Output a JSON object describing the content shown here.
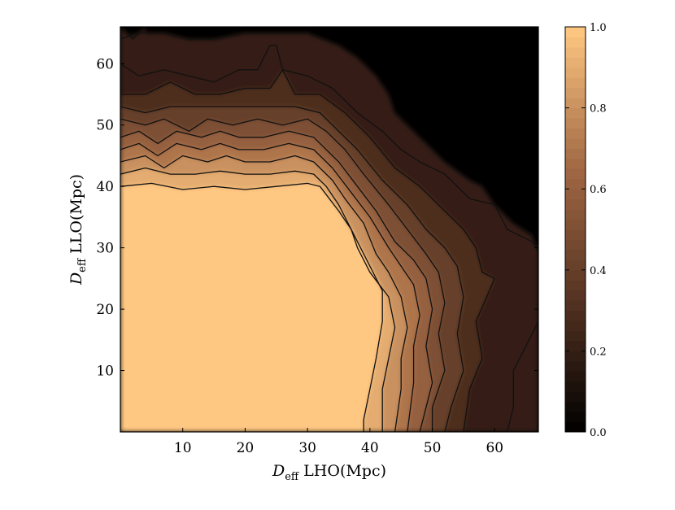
{
  "chart_data": {
    "type": "heatmap",
    "title": "",
    "xlabel": {
      "var": "D",
      "sub": "eff",
      "text": " LHO(Mpc)"
    },
    "ylabel": {
      "var": "D",
      "sub": "eff",
      "text": " LLO(Mpc)"
    },
    "xlim": [
      0,
      67
    ],
    "ylim": [
      0,
      66
    ],
    "xticks": [
      10,
      20,
      30,
      40,
      50,
      60
    ],
    "yticks": [
      10,
      20,
      30,
      40,
      50,
      60
    ],
    "colorbar": {
      "range": [
        0.0,
        1.0
      ],
      "ticks": [
        "1.0",
        "0.8",
        "0.6",
        "0.4",
        "0.2",
        "0.0"
      ],
      "tick_values": [
        1.0,
        0.8,
        0.6,
        0.4,
        0.2,
        0.0
      ],
      "colors": [
        "#000000",
        "#553322",
        "#a36a45",
        "#ffc882"
      ],
      "color_stops": [
        0.0,
        0.33,
        0.66,
        1.0
      ]
    },
    "contour_levels": [
      0.95,
      0.85,
      0.75,
      0.65,
      0.55,
      0.45,
      0.35,
      0.25
    ],
    "contours": [
      {
        "level": 0.95,
        "points": [
          [
            0,
            40
          ],
          [
            5,
            40.5
          ],
          [
            10,
            39.5
          ],
          [
            15,
            40
          ],
          [
            20,
            39.5
          ],
          [
            25,
            40
          ],
          [
            30,
            40.5
          ],
          [
            32,
            40
          ],
          [
            35,
            36
          ],
          [
            37,
            33
          ],
          [
            38,
            31
          ],
          [
            40,
            27
          ],
          [
            42,
            23
          ],
          [
            42,
            18
          ],
          [
            41,
            12
          ],
          [
            40,
            7
          ],
          [
            39,
            2
          ],
          [
            39,
            0
          ]
        ]
      },
      {
        "level": 0.85,
        "points": [
          [
            0,
            42
          ],
          [
            4,
            43
          ],
          [
            8,
            42
          ],
          [
            12,
            42
          ],
          [
            16,
            42.5
          ],
          [
            20,
            42
          ],
          [
            24,
            42
          ],
          [
            28,
            42.5
          ],
          [
            31,
            42
          ],
          [
            33,
            40
          ],
          [
            35,
            37
          ],
          [
            37,
            33
          ],
          [
            38,
            30
          ],
          [
            40,
            26
          ],
          [
            43,
            22
          ],
          [
            44,
            17
          ],
          [
            43,
            12
          ],
          [
            42,
            7
          ],
          [
            42,
            0
          ]
        ]
      },
      {
        "level": 0.75,
        "points": [
          [
            0,
            44
          ],
          [
            4,
            45
          ],
          [
            7,
            43
          ],
          [
            10,
            45
          ],
          [
            14,
            44
          ],
          [
            17,
            45
          ],
          [
            20,
            44
          ],
          [
            24,
            44
          ],
          [
            28,
            45
          ],
          [
            31,
            44
          ],
          [
            34,
            41
          ],
          [
            36,
            38
          ],
          [
            39,
            34
          ],
          [
            41,
            29
          ],
          [
            43,
            26
          ],
          [
            45,
            22
          ],
          [
            46,
            17
          ],
          [
            45,
            12
          ],
          [
            45,
            7
          ],
          [
            44,
            0
          ]
        ]
      },
      {
        "level": 0.65,
        "points": [
          [
            0,
            46
          ],
          [
            3,
            47
          ],
          [
            6,
            45
          ],
          [
            9,
            47
          ],
          [
            13,
            46
          ],
          [
            16,
            47
          ],
          [
            19,
            46
          ],
          [
            23,
            46
          ],
          [
            27,
            47
          ],
          [
            31,
            46
          ],
          [
            34,
            43
          ],
          [
            37,
            39
          ],
          [
            40,
            35
          ],
          [
            43,
            30
          ],
          [
            45,
            27
          ],
          [
            47,
            24
          ],
          [
            48,
            19
          ],
          [
            47,
            14
          ],
          [
            47,
            8
          ],
          [
            46,
            0
          ]
        ]
      },
      {
        "level": 0.55,
        "points": [
          [
            0,
            48
          ],
          [
            3,
            49
          ],
          [
            6,
            47
          ],
          [
            9,
            49
          ],
          [
            13,
            48
          ],
          [
            16,
            49
          ],
          [
            19,
            48
          ],
          [
            23,
            48
          ],
          [
            27,
            49
          ],
          [
            31,
            48
          ],
          [
            35,
            44
          ],
          [
            38,
            40
          ],
          [
            41,
            36
          ],
          [
            44,
            31
          ],
          [
            47,
            28
          ],
          [
            49,
            25
          ],
          [
            50,
            20
          ],
          [
            49,
            14
          ],
          [
            50,
            8
          ],
          [
            48,
            0
          ]
        ]
      },
      {
        "level": 0.45,
        "points": [
          [
            0,
            51
          ],
          [
            4,
            50
          ],
          [
            7,
            51
          ],
          [
            11,
            49
          ],
          [
            14,
            51
          ],
          [
            18,
            50
          ],
          [
            22,
            51
          ],
          [
            26,
            50
          ],
          [
            30,
            51
          ],
          [
            33,
            49
          ],
          [
            36,
            46
          ],
          [
            39,
            42
          ],
          [
            43,
            37
          ],
          [
            46,
            33
          ],
          [
            49,
            29
          ],
          [
            51,
            26
          ],
          [
            52,
            21
          ],
          [
            51,
            16
          ],
          [
            52,
            10
          ],
          [
            50,
            4
          ],
          [
            50,
            0
          ]
        ]
      },
      {
        "level": 0.35,
        "points": [
          [
            0,
            53
          ],
          [
            4,
            52
          ],
          [
            8,
            53
          ],
          [
            12,
            53
          ],
          [
            16,
            53
          ],
          [
            20,
            53
          ],
          [
            24,
            53
          ],
          [
            28,
            53
          ],
          [
            32,
            52
          ],
          [
            35,
            49
          ],
          [
            38,
            46
          ],
          [
            42,
            41
          ],
          [
            46,
            37
          ],
          [
            49,
            33
          ],
          [
            52,
            30
          ],
          [
            54,
            27
          ],
          [
            55,
            22
          ],
          [
            54,
            16
          ],
          [
            55,
            10
          ],
          [
            53,
            4
          ],
          [
            52,
            0
          ]
        ]
      },
      {
        "level": 0.25,
        "points": [
          [
            0,
            55
          ],
          [
            4,
            55
          ],
          [
            8,
            57
          ],
          [
            12,
            55
          ],
          [
            16,
            55
          ],
          [
            20,
            56
          ],
          [
            24,
            56
          ],
          [
            26,
            59
          ],
          [
            28,
            55
          ],
          [
            32,
            55
          ],
          [
            36,
            52
          ],
          [
            40,
            48
          ],
          [
            44,
            43
          ],
          [
            48,
            40
          ],
          [
            52,
            36
          ],
          [
            55,
            33
          ],
          [
            57,
            30
          ],
          [
            58,
            26
          ],
          [
            60,
            25
          ],
          [
            57,
            18
          ],
          [
            58,
            12
          ],
          [
            56,
            7
          ],
          [
            55,
            0
          ]
        ]
      },
      {
        "level": 0.15,
        "points": [
          [
            0,
            60
          ],
          [
            3,
            58
          ],
          [
            7,
            59
          ],
          [
            11,
            58
          ],
          [
            15,
            57
          ],
          [
            19,
            59
          ],
          [
            22,
            59
          ],
          [
            24,
            63
          ],
          [
            25,
            63
          ],
          [
            26,
            59
          ],
          [
            30,
            58
          ],
          [
            34,
            56
          ],
          [
            38,
            52
          ],
          [
            42,
            49
          ],
          [
            45,
            46
          ],
          [
            48,
            44
          ],
          [
            52,
            42
          ],
          [
            56,
            38
          ],
          [
            60,
            37
          ],
          [
            63,
            34
          ],
          [
            66,
            32
          ],
          [
            67,
            29
          ]
        ]
      },
      {
        "level": 0.15,
        "points": [
          [
            0,
            64
          ],
          [
            3,
            65
          ],
          [
            7,
            65
          ],
          [
            11,
            64
          ],
          [
            15,
            64
          ],
          [
            20,
            65
          ],
          [
            25,
            65
          ],
          [
            30,
            65
          ],
          [
            35,
            63
          ],
          [
            38,
            61
          ],
          [
            41,
            58
          ],
          [
            43,
            55
          ],
          [
            44,
            52
          ],
          [
            48,
            48
          ],
          [
            52,
            44
          ],
          [
            56,
            41
          ],
          [
            58,
            40
          ],
          [
            60,
            37
          ],
          [
            62,
            33
          ],
          [
            66,
            31
          ],
          [
            67,
            30
          ]
        ]
      },
      {
        "level": 0.15,
        "points": [
          [
            62,
            0
          ],
          [
            63,
            4
          ],
          [
            63,
            10
          ],
          [
            65,
            14
          ],
          [
            67,
            18
          ]
        ]
      },
      {
        "level": 0.15,
        "points": [
          [
            0,
            66
          ],
          [
            2,
            64
          ],
          [
            4,
            66
          ]
        ]
      }
    ]
  }
}
